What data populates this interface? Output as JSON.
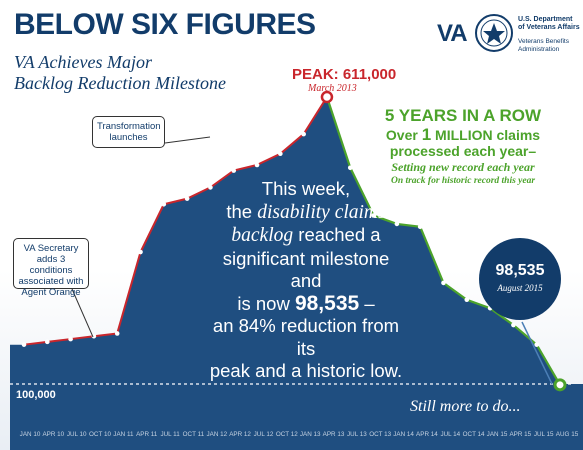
{
  "header": {
    "title": "BELOW SIX FIGURES",
    "subtitle_1": "VA Achieves Major",
    "subtitle_2": "Backlog Reduction Milestone"
  },
  "logo": {
    "brand": "VA",
    "dept_line_1": "U.S. Department",
    "dept_line_2": "of Veterans Affairs",
    "admin_line_1": "Veterans Benefits",
    "admin_line_2": "Administration"
  },
  "peak": {
    "label": "PEAK: 611,000",
    "date": "March 2013"
  },
  "records": {
    "heading": "5 YEARS IN A ROW",
    "line_1a": "Over ",
    "line_1b": "1",
    "line_1c": " MILLION claims",
    "line_2": "processed each year–",
    "line_3": "Setting new record each year",
    "line_4": "On track for historic record this year"
  },
  "callouts": {
    "transformation": "Transformation launches",
    "secretary": "VA Secretary adds 3 conditions associated with Agent Orange"
  },
  "message": {
    "p1": "This week,",
    "p2": "the ",
    "p3": "disability claims",
    "p4": "backlog",
    "p5": " reached a",
    "p6": "significant milestone and",
    "p7": "is now ",
    "p8": "98,535",
    "p9": " –",
    "p10": "an 84% reduction from its",
    "p11": "peak and a historic low."
  },
  "current": {
    "value": "98,535",
    "date": "August 2015"
  },
  "reference": {
    "label": "100,000"
  },
  "footer_note": "Still more to do...",
  "colors": {
    "navy": "#123c6a",
    "area": "#1f4e80",
    "green": "#4ca32b",
    "red": "#c9262c"
  },
  "chart_data": {
    "type": "area",
    "title": "",
    "xlabel": "",
    "ylabel": "",
    "ylim": [
      0,
      640000
    ],
    "reference_line": 100000,
    "x_ticks": [
      "JAN 10",
      "APR 10",
      "JUL 10",
      "OCT 10",
      "JAN 11",
      "APR 11",
      "JUL 11",
      "OCT 11",
      "JAN 12",
      "APR 12",
      "JUL 12",
      "OCT 12",
      "JAN 13",
      "APR 13",
      "JUL 13",
      "OCT 13",
      "JAN 14",
      "APR 14",
      "JUL 14",
      "OCT 14",
      "JAN 15",
      "APR 15",
      "JUL 15",
      "AUG 15"
    ],
    "series": [
      {
        "name": "",
        "x": [
          "JAN 10",
          "MAR 10",
          "JUN 10",
          "SEP 10",
          "DEC 10",
          "MAR 11",
          "JUN 11",
          "SEP 11",
          "DEC 11",
          "MAR 12",
          "JUN 12",
          "SEP 12",
          "DEC 12",
          "MAR 13",
          "JUN 13",
          "SEP 13",
          "DEC 13",
          "MAR 14",
          "JUN 14",
          "SEP 14",
          "DEC 14",
          "MAR 15",
          "JUN 15",
          "AUG 15"
        ],
        "values": [
          170000,
          175000,
          180000,
          185000,
          190000,
          335000,
          420000,
          430000,
          450000,
          480000,
          490000,
          510000,
          545000,
          611000,
          485000,
          400000,
          385000,
          380000,
          280000,
          250000,
          235000,
          205000,
          170000,
          98535
        ]
      }
    ]
  }
}
